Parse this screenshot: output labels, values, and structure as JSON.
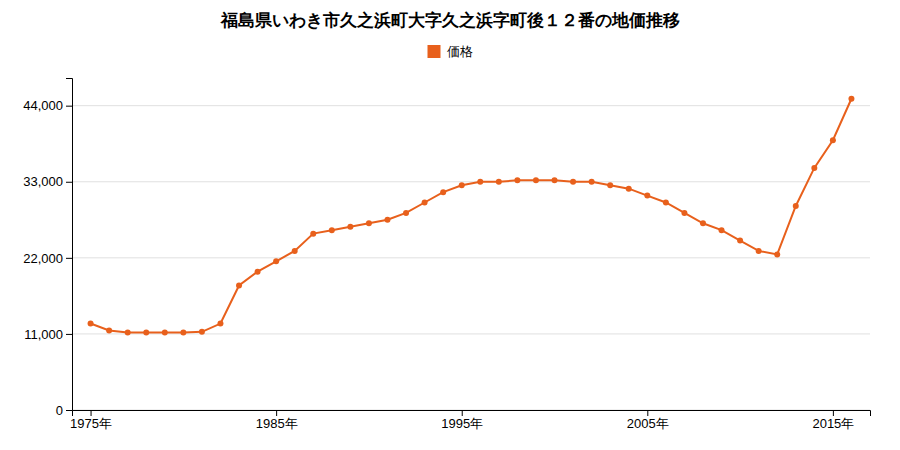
{
  "chart_data": {
    "type": "line",
    "title": "福島県いわき市久之浜町大字久之浜字町後１２番の地価推移",
    "x": [
      1975,
      1976,
      1977,
      1978,
      1979,
      1980,
      1981,
      1982,
      1983,
      1984,
      1985,
      1986,
      1987,
      1988,
      1989,
      1990,
      1991,
      1992,
      1993,
      1994,
      1995,
      1996,
      1997,
      1998,
      1999,
      2000,
      2001,
      2002,
      2003,
      2004,
      2005,
      2006,
      2007,
      2008,
      2009,
      2010,
      2011,
      2012,
      2013,
      2014,
      2015,
      2016
    ],
    "series": [
      {
        "name": "価格",
        "color": "#e8601c",
        "marker": "circle",
        "values": [
          12500,
          11500,
          11200,
          11200,
          11200,
          11200,
          11300,
          12500,
          18000,
          20000,
          21500,
          23000,
          25500,
          26000,
          26500,
          27000,
          27500,
          28500,
          30000,
          31500,
          32500,
          33000,
          33000,
          33200,
          33200,
          33200,
          33000,
          33000,
          32500,
          32000,
          31000,
          30000,
          28500,
          27000,
          26000,
          24500,
          23000,
          22500,
          29500,
          35000,
          39000,
          45000
        ]
      }
    ],
    "xlim": [
      1974,
      2017
    ],
    "xticks": [
      {
        "value": 1975,
        "label": "1975年"
      },
      {
        "value": 1985,
        "label": "1985年"
      },
      {
        "value": 1995,
        "label": "1995年"
      },
      {
        "value": 2005,
        "label": "2005年"
      },
      {
        "value": 2015,
        "label": "2015年"
      }
    ],
    "ylim": [
      0,
      48000
    ],
    "yticks": [
      0,
      {
        "value": 11000,
        "label": "11,000"
      },
      {
        "value": 22000,
        "label": "22,000"
      },
      {
        "value": 33000,
        "label": "33,000"
      },
      {
        "value": 44000,
        "label": "44,000"
      }
    ],
    "grid": "y",
    "legend": "top"
  }
}
